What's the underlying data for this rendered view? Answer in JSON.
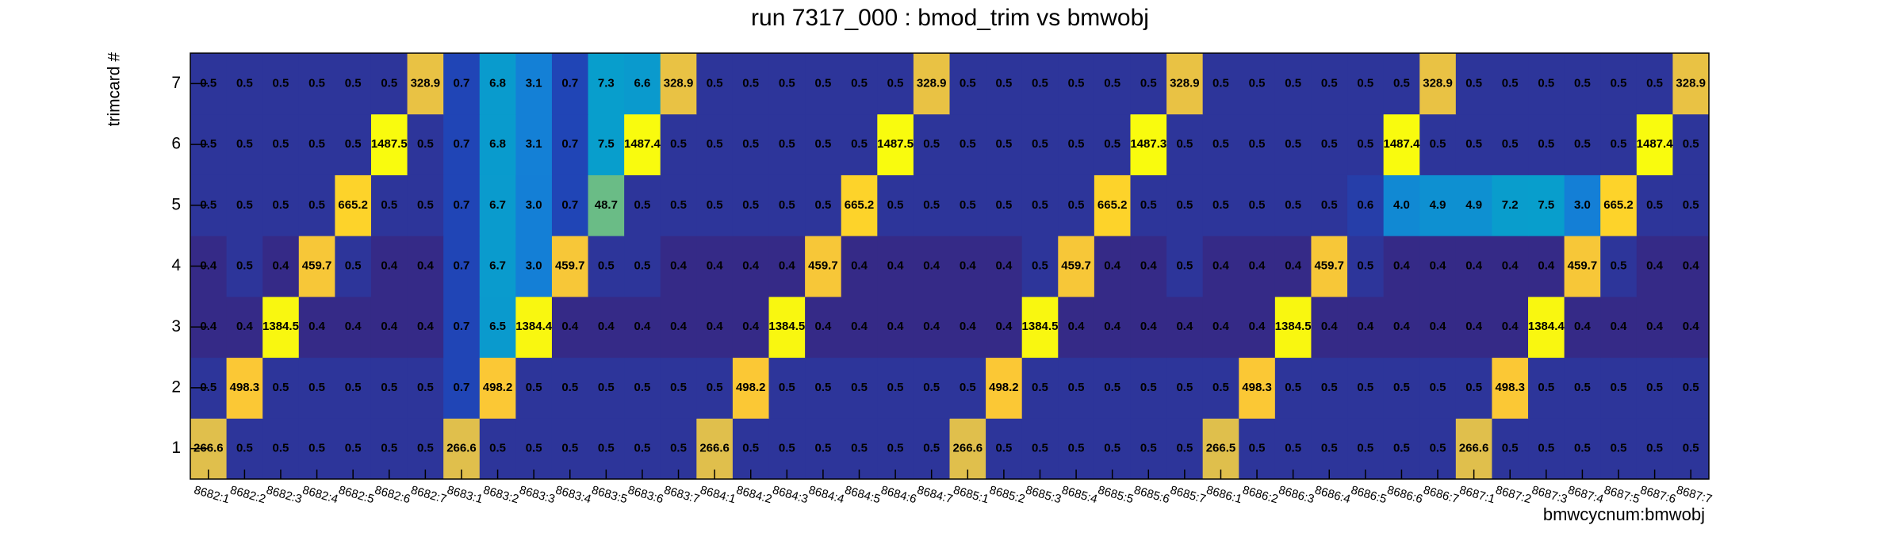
{
  "chart_data": {
    "type": "heatmap",
    "title": "run 7317_000 : bmod_trim vs bmwobj",
    "x_label": "bmwcycnum:bmwobj",
    "y_label": "trimcard #",
    "categories": [
      "8682:1",
      "8682:2",
      "8682:3",
      "8682:4",
      "8682:5",
      "8682:6",
      "8682:7",
      "8683:1",
      "8683:2",
      "8683:3",
      "8683:4",
      "8683:5",
      "8683:6",
      "8683:7",
      "8684:1",
      "8684:2",
      "8684:3",
      "8684:4",
      "8684:5",
      "8684:6",
      "8684:7",
      "8685:1",
      "8685:2",
      "8685:3",
      "8685:4",
      "8685:5",
      "8685:6",
      "8685:7",
      "8686:1",
      "8686:2",
      "8686:3",
      "8686:4",
      "8686:5",
      "8686:6",
      "8686:7",
      "8687:1",
      "8687:2",
      "8687:3",
      "8687:4",
      "8687:5",
      "8687:6",
      "8687:7"
    ],
    "y": [
      1,
      2,
      3,
      4,
      5,
      6,
      7
    ],
    "ylim": [
      0.5,
      7.5
    ],
    "yticks": [
      1,
      2,
      3,
      4,
      5,
      6,
      7
    ],
    "log_z": true,
    "colormap": "bird",
    "values": [
      [
        266.6,
        0.5,
        0.5,
        0.5,
        0.5,
        0.5,
        0.5,
        266.6,
        0.5,
        0.5,
        0.5,
        0.5,
        0.5,
        0.5,
        266.6,
        0.5,
        0.5,
        0.5,
        0.5,
        0.5,
        0.5,
        266.6,
        0.5,
        0.5,
        0.5,
        0.5,
        0.5,
        0.5,
        266.5,
        0.5,
        0.5,
        0.5,
        0.5,
        0.5,
        0.5,
        266.6,
        0.5,
        0.5,
        0.5,
        0.5,
        0.5,
        0.5
      ],
      [
        0.5,
        498.3,
        0.5,
        0.5,
        0.5,
        0.5,
        0.5,
        0.7,
        498.2,
        0.5,
        0.5,
        0.5,
        0.5,
        0.5,
        0.5,
        498.2,
        0.5,
        0.5,
        0.5,
        0.5,
        0.5,
        0.5,
        498.2,
        0.5,
        0.5,
        0.5,
        0.5,
        0.5,
        0.5,
        498.3,
        0.5,
        0.5,
        0.5,
        0.5,
        0.5,
        0.5,
        498.3,
        0.5,
        0.5,
        0.5,
        0.5,
        0.5
      ],
      [
        0.4,
        0.4,
        1384.5,
        0.4,
        0.4,
        0.4,
        0.4,
        0.7,
        6.5,
        1384.4,
        0.4,
        0.4,
        0.4,
        0.4,
        0.4,
        0.4,
        1384.5,
        0.4,
        0.4,
        0.4,
        0.4,
        0.4,
        0.4,
        1384.5,
        0.4,
        0.4,
        0.4,
        0.4,
        0.4,
        0.4,
        1384.5,
        0.4,
        0.4,
        0.4,
        0.4,
        0.4,
        0.4,
        1384.4,
        0.4,
        0.4,
        0.4,
        0.4
      ],
      [
        0.4,
        0.5,
        0.4,
        459.7,
        0.5,
        0.4,
        0.4,
        0.7,
        6.7,
        3.0,
        459.7,
        0.5,
        0.5,
        0.4,
        0.4,
        0.4,
        0.4,
        459.7,
        0.4,
        0.4,
        0.4,
        0.4,
        0.4,
        0.5,
        459.7,
        0.4,
        0.4,
        0.5,
        0.4,
        0.4,
        0.4,
        459.7,
        0.5,
        0.4,
        0.4,
        0.4,
        0.4,
        0.4,
        459.7,
        0.5,
        0.4,
        0.4
      ],
      [
        0.5,
        0.5,
        0.5,
        0.5,
        665.2,
        0.5,
        0.5,
        0.7,
        6.7,
        3.0,
        0.7,
        48.7,
        0.5,
        0.5,
        0.5,
        0.5,
        0.5,
        0.5,
        665.2,
        0.5,
        0.5,
        0.5,
        0.5,
        0.5,
        0.5,
        665.2,
        0.5,
        0.5,
        0.5,
        0.5,
        0.5,
        0.5,
        0.6,
        4.0,
        4.9,
        4.9,
        7.2,
        7.5,
        3.0,
        665.2,
        0.5,
        0.5
      ],
      [
        0.5,
        0.5,
        0.5,
        0.5,
        0.5,
        1487.5,
        0.5,
        0.7,
        6.8,
        3.1,
        0.7,
        7.5,
        1487.4,
        0.5,
        0.5,
        0.5,
        0.5,
        0.5,
        0.5,
        1487.5,
        0.5,
        0.5,
        0.5,
        0.5,
        0.5,
        0.5,
        1487.3,
        0.5,
        0.5,
        0.5,
        0.5,
        0.5,
        0.5,
        1487.4,
        0.5,
        0.5,
        0.5,
        0.5,
        0.5,
        0.5,
        1487.4,
        0.5
      ],
      [
        0.5,
        0.5,
        0.5,
        0.5,
        0.5,
        0.5,
        328.9,
        0.7,
        6.8,
        3.1,
        0.7,
        7.3,
        6.6,
        328.9,
        0.5,
        0.5,
        0.5,
        0.5,
        0.5,
        0.5,
        328.9,
        0.5,
        0.5,
        0.5,
        0.5,
        0.5,
        0.5,
        328.9,
        0.5,
        0.5,
        0.5,
        0.5,
        0.5,
        0.5,
        328.9,
        0.5,
        0.5,
        0.5,
        0.5,
        0.5,
        0.5,
        328.9
      ]
    ],
    "value_labels": [
      [
        "266.6",
        "0.5",
        "0.5",
        "0.5",
        "0.5",
        "0.5",
        "0.5",
        "266.6",
        "0.5",
        "0.5",
        "0.5",
        "0.5",
        "0.5",
        "0.5",
        "266.6",
        "0.5",
        "0.5",
        "0.5",
        "0.5",
        "0.5",
        "0.5",
        "266.6",
        "0.5",
        "0.5",
        "0.5",
        "0.5",
        "0.5",
        "0.5",
        "266.5",
        "0.5",
        "0.5",
        "0.5",
        "0.5",
        "0.5",
        "0.5",
        "266.6",
        "0.5",
        "0.5",
        "0.5",
        "0.5",
        "0.5",
        "0.5"
      ],
      [
        "0.5",
        "498.3",
        "0.5",
        "0.5",
        "0.5",
        "0.5",
        "0.5",
        "0.7",
        "498.2",
        "0.5",
        "0.5",
        "0.5",
        "0.5",
        "0.5",
        "0.5",
        "498.2",
        "0.5",
        "0.5",
        "0.5",
        "0.5",
        "0.5",
        "0.5",
        "498.2",
        "0.5",
        "0.5",
        "0.5",
        "0.5",
        "0.5",
        "0.5",
        "498.3",
        "0.5",
        "0.5",
        "0.5",
        "0.5",
        "0.5",
        "0.5",
        "498.3",
        "0.5",
        "0.5",
        "0.5",
        "0.5",
        "0.5"
      ],
      [
        "0.4",
        "0.4",
        "1384.5",
        "0.4",
        "0.4",
        "0.4",
        "0.4",
        "0.7",
        "6.5",
        "1384.4",
        "0.4",
        "0.4",
        "0.4",
        "0.4",
        "0.4",
        "0.4",
        "1384.5",
        "0.4",
        "0.4",
        "0.4",
        "0.4",
        "0.4",
        "0.4",
        "1384.5",
        "0.4",
        "0.4",
        "0.4",
        "0.4",
        "0.4",
        "0.4",
        "1384.5",
        "0.4",
        "0.4",
        "0.4",
        "0.4",
        "0.4",
        "0.4",
        "1384.4",
        "0.4",
        "0.4",
        "0.4",
        "0.4"
      ],
      [
        "0.4",
        "0.5",
        "0.4",
        "459.7",
        "0.5",
        "0.4",
        "0.4",
        "0.7",
        "6.7",
        "3.0",
        "459.7",
        "0.5",
        "0.5",
        "0.4",
        "0.4",
        "0.4",
        "0.4",
        "459.7",
        "0.4",
        "0.4",
        "0.4",
        "0.4",
        "0.4",
        "0.5",
        "459.7",
        "0.4",
        "0.4",
        "0.5",
        "0.4",
        "0.4",
        "0.4",
        "459.7",
        "0.5",
        "0.4",
        "0.4",
        "0.4",
        "0.4",
        "0.4",
        "459.7",
        "0.5",
        "0.4",
        "0.4"
      ],
      [
        "0.5",
        "0.5",
        "0.5",
        "0.5",
        "665.2",
        "0.5",
        "0.5",
        "0.7",
        "6.7",
        "3.0",
        "0.7",
        "48.7",
        "0.5",
        "0.5",
        "0.5",
        "0.5",
        "0.5",
        "0.5",
        "665.2",
        "0.5",
        "0.5",
        "0.5",
        "0.5",
        "0.5",
        "0.5",
        "665.2",
        "0.5",
        "0.5",
        "0.5",
        "0.5",
        "0.5",
        "0.5",
        "0.6",
        "4.0",
        "4.9",
        "4.9",
        "7.2",
        "7.5",
        "3.0",
        "665.2",
        "0.5",
        "0.5"
      ],
      [
        "0.5",
        "0.5",
        "0.5",
        "0.5",
        "0.5",
        "1487.5",
        "0.5",
        "0.7",
        "6.8",
        "3.1",
        "0.7",
        "7.5",
        "1487.4",
        "0.5",
        "0.5",
        "0.5",
        "0.5",
        "0.5",
        "0.5",
        "1487.5",
        "0.5",
        "0.5",
        "0.5",
        "0.5",
        "0.5",
        "0.5",
        "1487.3",
        "0.5",
        "0.5",
        "0.5",
        "0.5",
        "0.5",
        "0.5",
        "1487.4",
        "0.5",
        "0.5",
        "0.5",
        "0.5",
        "0.5",
        "0.5",
        "1487.4",
        "0.5"
      ],
      [
        "0.5",
        "0.5",
        "0.5",
        "0.5",
        "0.5",
        "0.5",
        "328.9",
        "0.7",
        "6.8",
        "3.1",
        "0.7",
        "7.3",
        "6.6",
        "328.9",
        "0.5",
        "0.5",
        "0.5",
        "0.5",
        "0.5",
        "0.5",
        "328.9",
        "0.5",
        "0.5",
        "0.5",
        "0.5",
        "0.5",
        "0.5",
        "328.9",
        "0.5",
        "0.5",
        "0.5",
        "0.5",
        "0.5",
        "0.5",
        "328.9",
        "0.5",
        "0.5",
        "0.5",
        "0.5",
        "0.5",
        "0.5",
        "328.9"
      ]
    ]
  }
}
